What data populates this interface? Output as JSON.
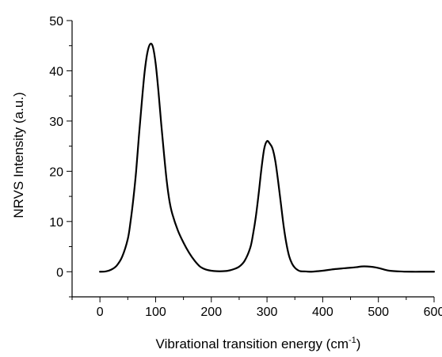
{
  "chart_data": {
    "type": "line",
    "title": "",
    "xlabel": "Vibrational transition energy (cm",
    "xlabel_superscript": "-1",
    "xlabel_suffix": ")",
    "ylabel": "NRVS Intensity (a.u.)",
    "xlim": [
      -50,
      600
    ],
    "ylim": [
      -5,
      50
    ],
    "x_ticks": [
      "0",
      "100",
      "200",
      "300",
      "400",
      "500",
      "600"
    ],
    "y_ticks": [
      "0",
      "10",
      "20",
      "30",
      "40",
      "50"
    ],
    "grid": false,
    "legend": "none",
    "series": [
      {
        "color": "#000000",
        "x": [
          0,
          10,
          20,
          30,
          40,
          50,
          55,
          60,
          65,
          70,
          75,
          80,
          85,
          90,
          95,
          100,
          105,
          110,
          115,
          120,
          125,
          130,
          140,
          150,
          160,
          170,
          180,
          190,
          200,
          210,
          220,
          230,
          240,
          250,
          260,
          270,
          275,
          280,
          285,
          290,
          295,
          300,
          305,
          310,
          315,
          320,
          325,
          330,
          335,
          340,
          345,
          350,
          355,
          360,
          370,
          380,
          390,
          400,
          420,
          440,
          460,
          470,
          480,
          490,
          500,
          510,
          520,
          540,
          560,
          580,
          600
        ],
        "y": [
          0,
          0.05,
          0.4,
          1.2,
          3.0,
          6.5,
          10,
          14.5,
          20,
          27,
          33.5,
          39.5,
          43.5,
          45.3,
          44.8,
          41.5,
          36,
          29.5,
          23.5,
          18,
          14,
          11.5,
          8.2,
          5.8,
          3.8,
          2.2,
          1.0,
          0.45,
          0.2,
          0.1,
          0.1,
          0.2,
          0.5,
          1.0,
          2.2,
          4.8,
          7.5,
          11,
          15.5,
          20.5,
          24.5,
          26,
          25.5,
          24.5,
          22,
          18,
          13.5,
          9,
          5.5,
          3.0,
          1.6,
          0.8,
          0.35,
          0.1,
          0.05,
          0.0,
          0.1,
          0.2,
          0.5,
          0.7,
          0.9,
          1.05,
          1.05,
          0.95,
          0.75,
          0.45,
          0.2,
          0.05,
          0.0,
          0.0,
          0.0
        ]
      }
    ]
  }
}
